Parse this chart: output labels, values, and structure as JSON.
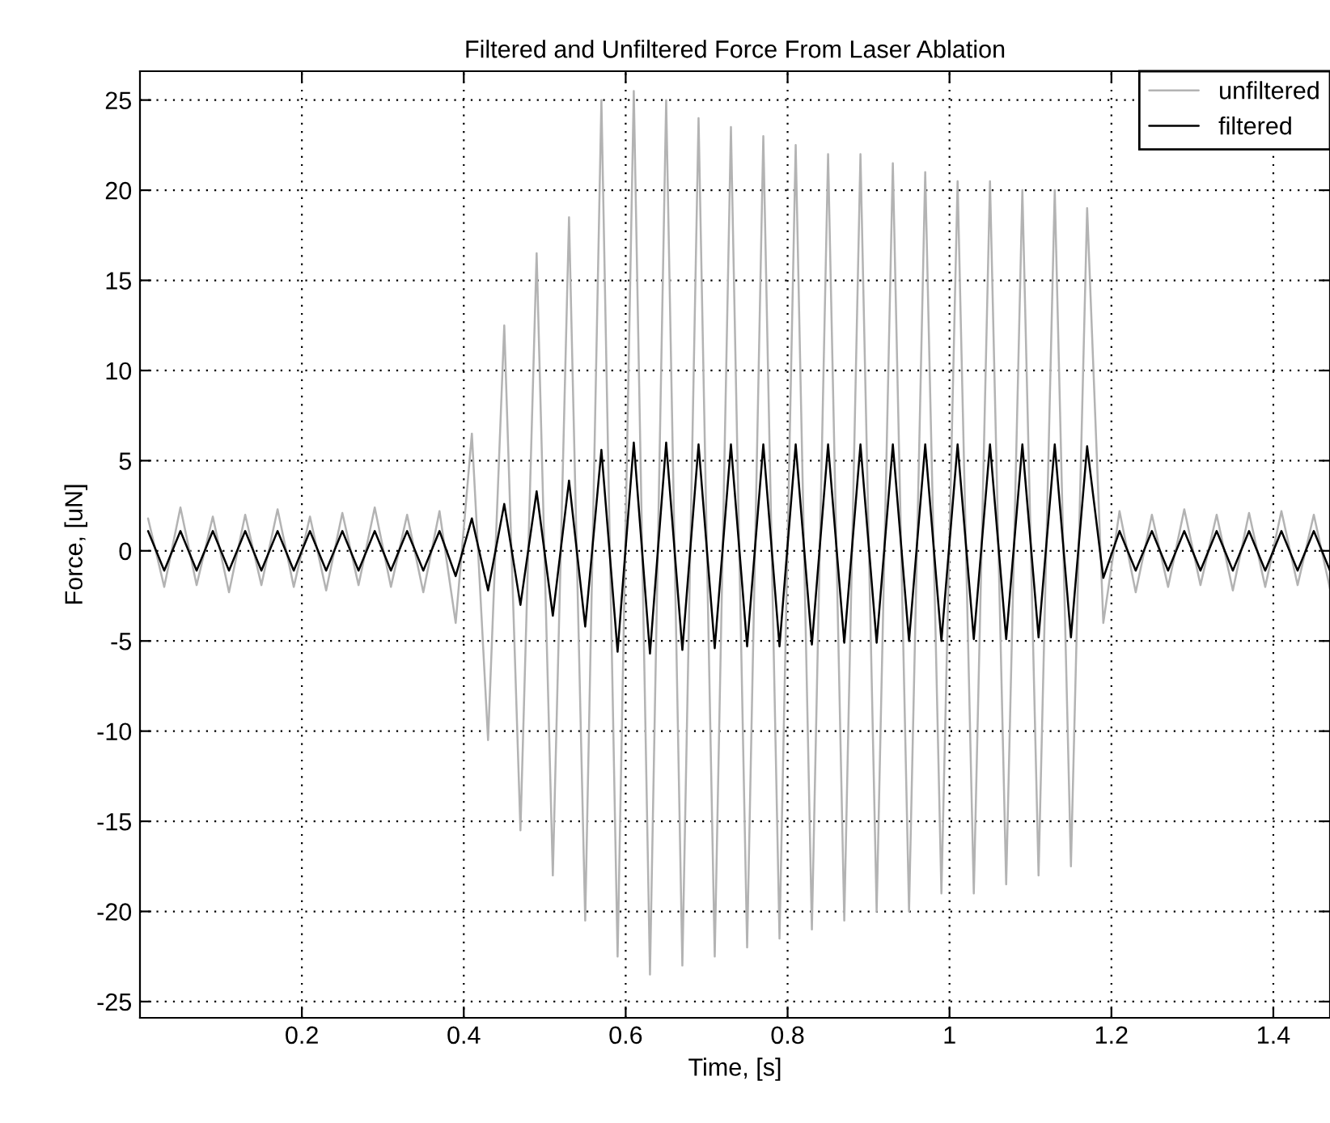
{
  "chart_data": {
    "type": "line",
    "title": "Filtered and Unfiltered Force From Laser Ablation",
    "xlabel": "Time, [s]",
    "ylabel": "Force, [uN]",
    "x": [
      0.01,
      0.03,
      0.05,
      0.07,
      0.09,
      0.11,
      0.13,
      0.15,
      0.17,
      0.19,
      0.21,
      0.23,
      0.25,
      0.27,
      0.29,
      0.31,
      0.33,
      0.35,
      0.37,
      0.39,
      0.41,
      0.43,
      0.45,
      0.47,
      0.49,
      0.51,
      0.53,
      0.55,
      0.57,
      0.59,
      0.61,
      0.63,
      0.65,
      0.67,
      0.69,
      0.71,
      0.73,
      0.75,
      0.77,
      0.79,
      0.81,
      0.83,
      0.85,
      0.87,
      0.89,
      0.91,
      0.93,
      0.95,
      0.97,
      0.99,
      1.01,
      1.03,
      1.05,
      1.07,
      1.09,
      1.11,
      1.13,
      1.15,
      1.17,
      1.19,
      1.21,
      1.23,
      1.25,
      1.27,
      1.29,
      1.31,
      1.33,
      1.35,
      1.37,
      1.39,
      1.41,
      1.43,
      1.45,
      1.47
    ],
    "series": [
      {
        "name": "unfiltered",
        "color": "#b3b3b3",
        "values": [
          1.8,
          -2.0,
          2.4,
          -1.9,
          1.9,
          -2.3,
          2.0,
          -1.9,
          2.3,
          -2.0,
          1.9,
          -2.2,
          2.1,
          -1.9,
          2.4,
          -2.0,
          2.0,
          -2.3,
          2.2,
          -4.0,
          6.5,
          -10.5,
          12.5,
          -15.5,
          16.5,
          -18.0,
          18.5,
          -20.5,
          25.0,
          -22.5,
          25.5,
          -23.5,
          25.0,
          -23.0,
          24.0,
          -22.5,
          23.5,
          -22.0,
          23.0,
          -21.5,
          22.5,
          -21.0,
          22.0,
          -20.5,
          22.0,
          -20.0,
          21.5,
          -20.0,
          21.0,
          -19.0,
          20.5,
          -19.0,
          20.5,
          -18.5,
          20.0,
          -18.0,
          20.0,
          -17.5,
          19.0,
          -4.0,
          2.2,
          -2.3,
          2.0,
          -2.0,
          2.3,
          -1.9,
          2.0,
          -2.2,
          2.1,
          -2.0,
          2.2,
          -1.9,
          2.0,
          -2.1
        ]
      },
      {
        "name": "filtered",
        "color": "#000000",
        "values": [
          1.1,
          -1.1,
          1.1,
          -1.1,
          1.1,
          -1.1,
          1.1,
          -1.1,
          1.1,
          -1.1,
          1.1,
          -1.1,
          1.1,
          -1.1,
          1.1,
          -1.1,
          1.1,
          -1.1,
          1.1,
          -1.4,
          1.8,
          -2.2,
          2.6,
          -3.0,
          3.3,
          -3.6,
          3.9,
          -4.2,
          5.6,
          -5.6,
          6.0,
          -5.7,
          6.0,
          -5.5,
          5.9,
          -5.4,
          5.9,
          -5.3,
          5.9,
          -5.3,
          5.9,
          -5.2,
          5.9,
          -5.1,
          5.9,
          -5.1,
          5.9,
          -5.0,
          5.9,
          -5.0,
          5.9,
          -4.9,
          5.9,
          -4.9,
          5.9,
          -4.8,
          5.9,
          -4.8,
          5.8,
          -1.5,
          1.1,
          -1.1,
          1.1,
          -1.1,
          1.1,
          -1.1,
          1.1,
          -1.1,
          1.1,
          -1.1,
          1.1,
          -1.1,
          1.1,
          -1.1
        ]
      }
    ],
    "xlim": [
      0,
      1.47
    ],
    "ylim": [
      -25.9,
      26.6
    ],
    "xticks": [
      0.2,
      0.4,
      0.6,
      0.8,
      1,
      1.2,
      1.4
    ],
    "yticks": [
      -25,
      -20,
      -15,
      -10,
      -5,
      0,
      5,
      10,
      15,
      20,
      25
    ],
    "grid": true,
    "legend": "top right",
    "line_style": "solid",
    "marker": "none"
  }
}
